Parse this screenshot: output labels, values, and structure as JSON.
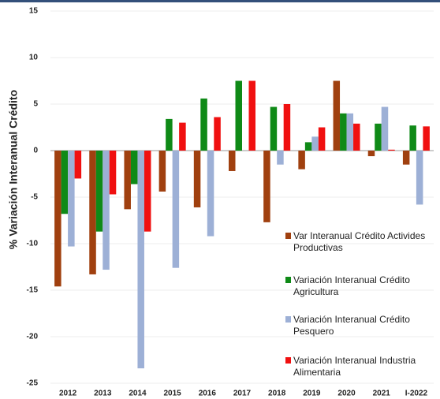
{
  "chart_data": {
    "type": "bar",
    "y_label": "% Variación Interanual Crédito",
    "categories": [
      "2012",
      "2013",
      "2014",
      "2015",
      "2016",
      "2017",
      "2018",
      "2019",
      "2020",
      "2021",
      "I-2022"
    ],
    "series": [
      {
        "name": "Var Interanual Crédito Activides Productivas",
        "color": "#a0400f",
        "values": [
          -14.6,
          -13.3,
          -6.3,
          -4.4,
          -6.1,
          -2.2,
          -7.7,
          -2.0,
          7.5,
          -0.6,
          -1.5
        ]
      },
      {
        "name": "Variación Interanual Crédito Agricultura",
        "color": "#0f8a17",
        "values": [
          -6.8,
          -8.7,
          -3.6,
          3.4,
          5.6,
          7.5,
          4.7,
          0.9,
          4.0,
          2.9,
          2.7
        ]
      },
      {
        "name": "Variación Interanual Crédito Pesquero",
        "color": "#9db0d6",
        "values": [
          -10.3,
          -12.8,
          -23.4,
          -12.6,
          -9.2,
          null,
          -1.5,
          1.5,
          4.0,
          4.7,
          -5.8
        ]
      },
      {
        "name": "Variación Interanual Industria Alimentaria",
        "color": "#f01010",
        "values": [
          -3.0,
          -4.7,
          -8.7,
          3.0,
          3.6,
          7.5,
          5.0,
          2.5,
          2.9,
          0.1,
          2.6
        ]
      }
    ],
    "ylim": [
      -25,
      15
    ],
    "yticks": [
      -25,
      -20,
      -15,
      -10,
      -5,
      0,
      5,
      10,
      15
    ],
    "grid": true,
    "legend": "lower right"
  }
}
